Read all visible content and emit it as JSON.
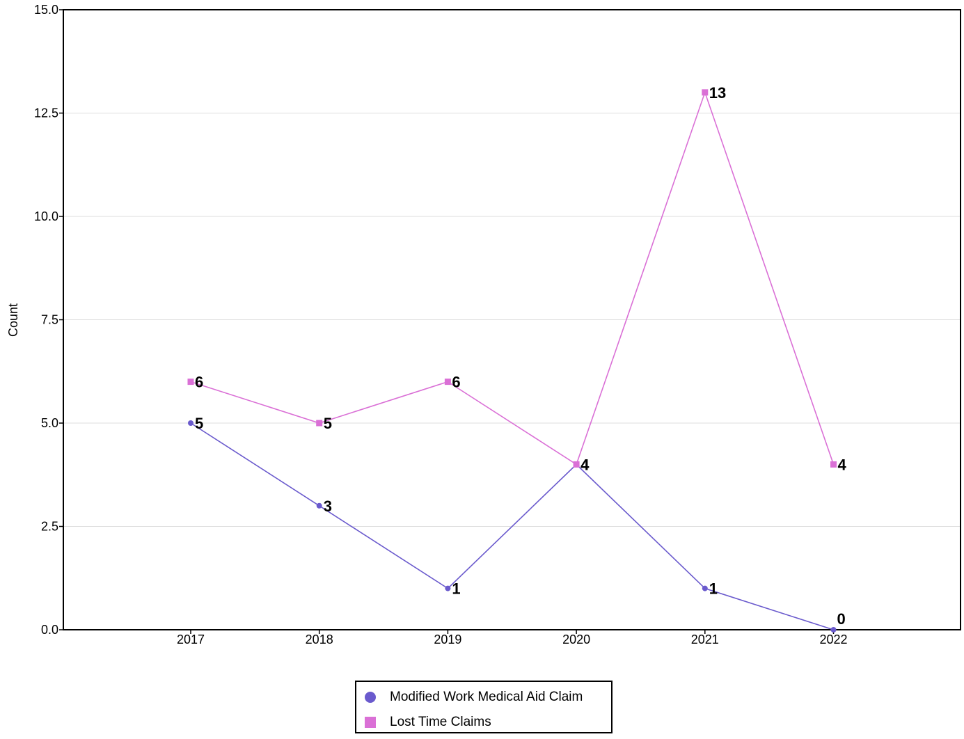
{
  "chart_data": {
    "type": "line",
    "title": "",
    "xlabel": "",
    "ylabel": "Count",
    "categories": [
      "2017",
      "2018",
      "2019",
      "2020",
      "2021",
      "2022"
    ],
    "ylim": [
      0,
      15
    ],
    "yticks": [
      "0.0",
      "2.5",
      "5.0",
      "7.5",
      "10.0",
      "12.5",
      "15.0"
    ],
    "grid": true,
    "legend_position": "bottom-center",
    "series": [
      {
        "name": "Modified Work Medical Aid Claim",
        "values": [
          5,
          3,
          1,
          4,
          1,
          0
        ],
        "labels": [
          "5",
          "3",
          "1",
          "4",
          "1",
          "0"
        ],
        "color": "#6a5acd",
        "marker": "circle"
      },
      {
        "name": "Lost Time Claims",
        "values": [
          6,
          5,
          6,
          4,
          13,
          4
        ],
        "labels": [
          "6",
          "5",
          "6",
          "4",
          "13",
          "4"
        ],
        "color": "#da70d6",
        "marker": "square"
      }
    ]
  }
}
